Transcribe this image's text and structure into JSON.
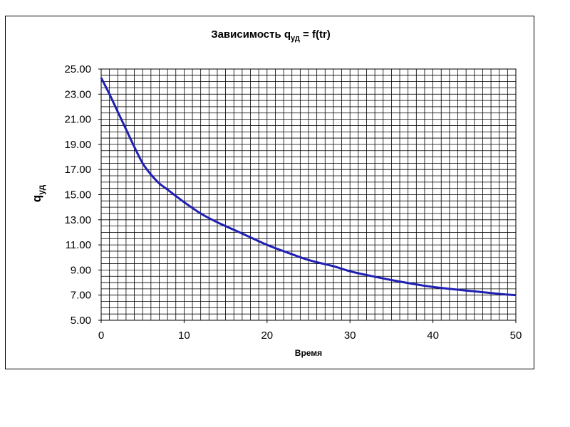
{
  "chart_data": {
    "type": "line",
    "title": {
      "main": "Зависимость q",
      "sub": "уд",
      "rest": " = f(tr)"
    },
    "xlabel": "Время",
    "ylabel": {
      "main": "q",
      "sub": "уд"
    },
    "xlim": [
      0,
      50
    ],
    "ylim": [
      5,
      25
    ],
    "x_ticks": [
      "0",
      "10",
      "20",
      "30",
      "40",
      "50"
    ],
    "y_ticks": [
      "5.00",
      "7.00",
      "9.00",
      "11.00",
      "13.00",
      "15.00",
      "17.00",
      "19.00",
      "21.00",
      "23.00",
      "25.00"
    ],
    "grid": true,
    "legend": "none",
    "series": [
      {
        "color": "#1f1fb4",
        "x": [
          0,
          1,
          2,
          3,
          4,
          5,
          6,
          7,
          8,
          10,
          12,
          14,
          16,
          18,
          20,
          22,
          25,
          28,
          30,
          32,
          35,
          38,
          40,
          42,
          45,
          48,
          50
        ],
        "y": [
          24.3,
          23.0,
          21.6,
          20.2,
          18.8,
          17.5,
          16.6,
          15.9,
          15.4,
          14.4,
          13.5,
          12.8,
          12.2,
          11.6,
          11.0,
          10.5,
          9.8,
          9.3,
          8.9,
          8.6,
          8.2,
          7.85,
          7.65,
          7.5,
          7.3,
          7.1,
          7.0
        ]
      }
    ]
  }
}
